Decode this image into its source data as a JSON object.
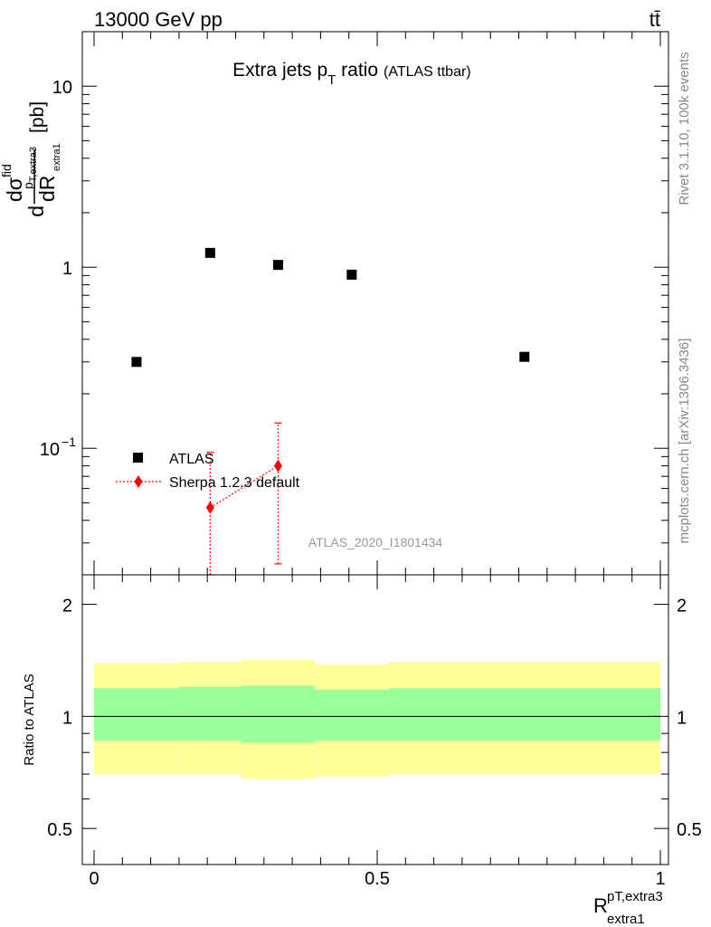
{
  "header": {
    "energy_label": "13000 GeV pp",
    "process_label": "tt̄"
  },
  "side_labels": {
    "rivet_info": "Rivet 3.1.10,  100k events",
    "mcplots_info": "mcplots.cern.ch [arXiv:1306.3436]"
  },
  "chart_data": [
    {
      "type": "scatter",
      "panel": "main",
      "title": "Extra jets p",
      "title_sub": "T",
      "title_tail": " ratio",
      "title_note": "(ATLAS ttbar)",
      "ylabel_parts": {
        "d": "d",
        "numer": "dσ",
        "numer_sup": "fid",
        "numer_sub": "p",
        "numer_sub2": "T,extra3",
        "denom": "dR",
        "denom_sub": "extra1",
        "unit": "[pb]"
      },
      "yscale": "log",
      "ylim": [
        0.02,
        20
      ],
      "xlim": [
        -0.015,
        1.0
      ],
      "y_ticks": [
        {
          "value": 0.1,
          "base": "10",
          "exp": "−1"
        },
        {
          "value": 1,
          "label": "1"
        },
        {
          "value": 10,
          "label": "10"
        }
      ],
      "series": [
        {
          "name": "ATLAS",
          "marker": "square",
          "color": "#000000",
          "x": [
            0.075,
            0.205,
            0.325,
            0.455,
            0.76
          ],
          "y": [
            0.3,
            1.2,
            1.03,
            0.91,
            0.32
          ]
        },
        {
          "name": "Sherpa 1.2.3 default",
          "marker": "diamond",
          "color": "#ff0000",
          "x": [
            0.205,
            0.325
          ],
          "y": [
            0.047,
            0.08
          ],
          "y_err_low": [
            0.02,
            0.023
          ],
          "y_err_high": [
            0.095,
            0.138
          ]
        }
      ],
      "watermark": "ATLAS_2020_I1801434",
      "legend_position": "lower-left"
    },
    {
      "type": "area",
      "panel": "ratio",
      "ylabel": "Ratio to ATLAS",
      "xlabel": "R",
      "xlabel_sup": "pT,extra3",
      "xlabel_sub": "extra1",
      "ylim": [
        0.4,
        2.4
      ],
      "yscale": "log",
      "xlim": [
        -0.015,
        1.0
      ],
      "y_ticks": [
        {
          "value": 0.5,
          "label": "0.5"
        },
        {
          "value": 1,
          "label": "1"
        },
        {
          "value": 2,
          "label": "2"
        }
      ],
      "x_ticks": [
        {
          "value": 0,
          "label": "0"
        },
        {
          "value": 0.5,
          "label": "0.5"
        },
        {
          "value": 1,
          "label": "1"
        }
      ],
      "bins": [
        {
          "x0": 0.0,
          "x1": 0.15,
          "inner": [
            0.86,
            1.19
          ],
          "outer": [
            0.7,
            1.39
          ]
        },
        {
          "x0": 0.15,
          "x1": 0.26,
          "inner": [
            0.86,
            1.2
          ],
          "outer": [
            0.7,
            1.4
          ]
        },
        {
          "x0": 0.26,
          "x1": 0.39,
          "inner": [
            0.85,
            1.21
          ],
          "outer": [
            0.68,
            1.42
          ]
        },
        {
          "x0": 0.39,
          "x1": 0.52,
          "inner": [
            0.86,
            1.18
          ],
          "outer": [
            0.69,
            1.38
          ]
        },
        {
          "x0": 0.52,
          "x1": 1.0,
          "inner": [
            0.86,
            1.19
          ],
          "outer": [
            0.7,
            1.4
          ]
        }
      ],
      "reference": 1,
      "inner_color": "#99ff99",
      "outer_color": "#ffff99"
    }
  ]
}
